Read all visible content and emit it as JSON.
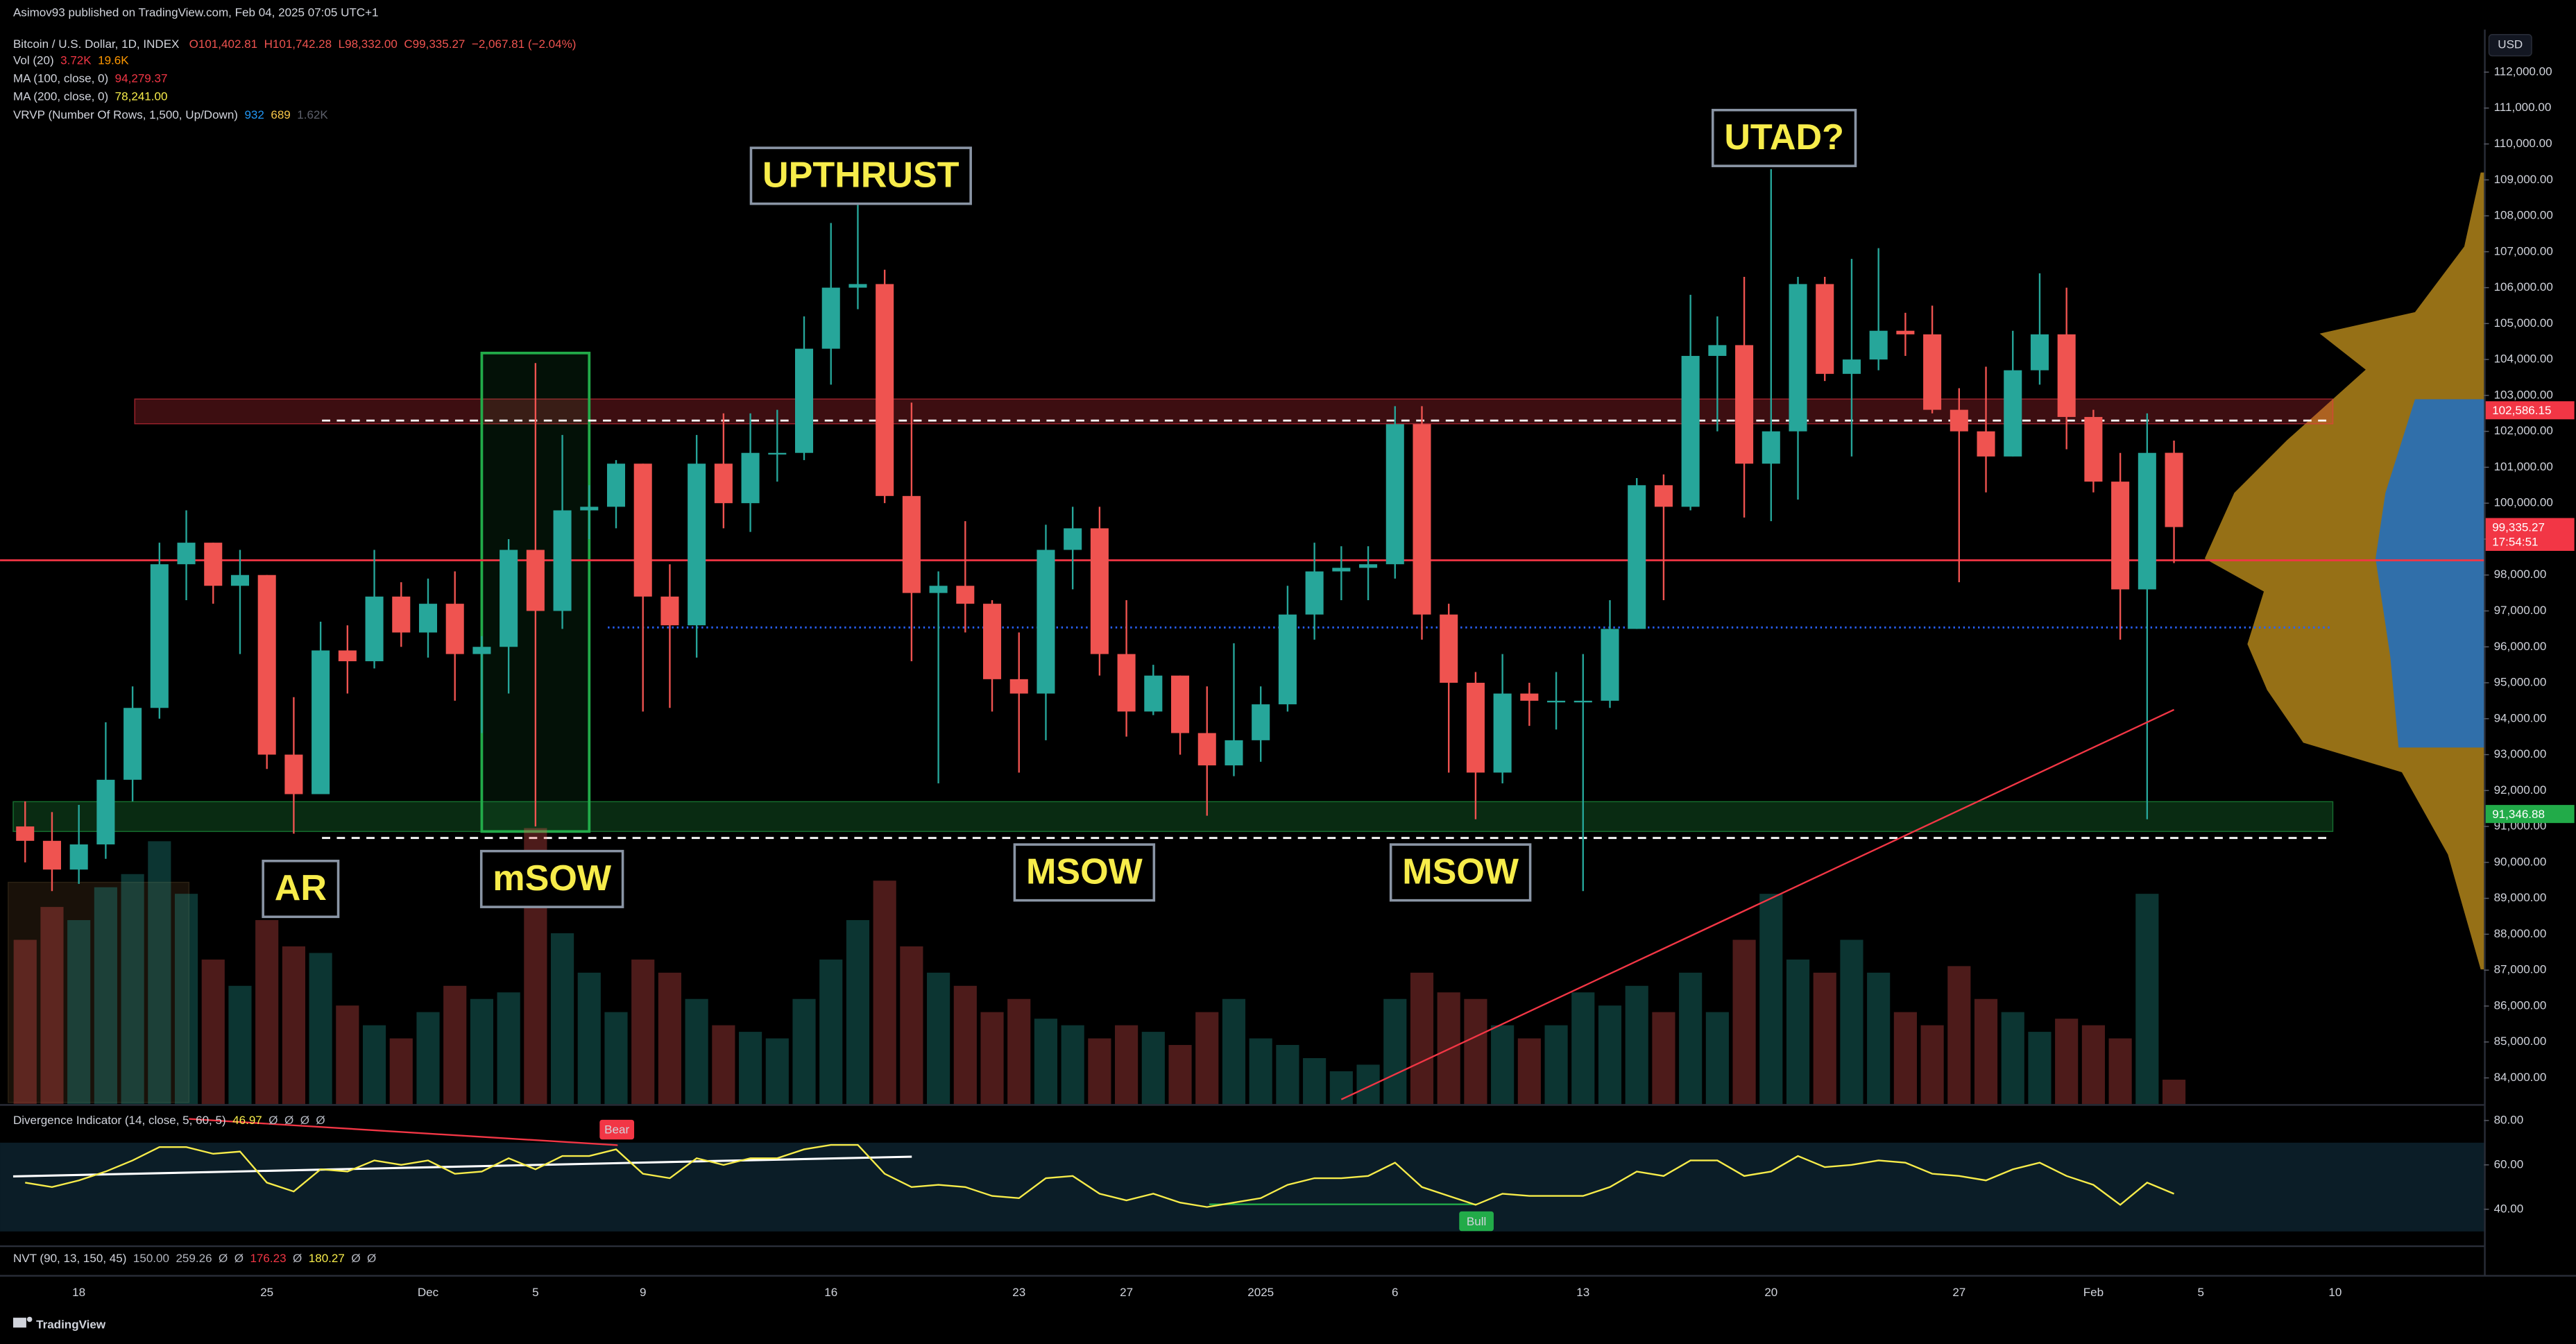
{
  "header": {
    "published": "Asimov93 published on TradingView.com, Feb 04, 2025 07:05 UTC+1",
    "symbol": "Bitcoin / U.S. Dollar, 1D, INDEX",
    "ohlc": [
      "O101,402.81",
      "H101,742.28",
      "L98,332.00",
      "C99,335.27",
      "−2,067.81 (−2.04%)"
    ],
    "studies": [
      {
        "name": "Vol (20)",
        "values": [
          "3.72K",
          "19.6K"
        ],
        "colors": [
          "#f23645",
          "#ff9800"
        ]
      },
      {
        "name": "MA (100, close, 0)",
        "values": [
          "94,279.37"
        ],
        "colors": [
          "#f23645"
        ]
      },
      {
        "name": "MA (200, close, 0)",
        "values": [
          "78,241.00"
        ],
        "colors": [
          "#f7ec4a"
        ]
      },
      {
        "name": "VRVP (Number Of Rows, 1,500, Up/Down)",
        "values": [
          "932",
          "689",
          "1.62K"
        ],
        "colors": [
          "#2196f3",
          "#f7c548",
          "#5d606b"
        ]
      }
    ]
  },
  "chart_data": {
    "type": "candlestick",
    "currency": "USD",
    "categories": [
      null,
      null,
      "18",
      null,
      null,
      null,
      null,
      null,
      null,
      "25",
      null,
      null,
      null,
      null,
      null,
      "Dec",
      null,
      null,
      null,
      "5",
      null,
      null,
      null,
      "9",
      null,
      null,
      null,
      null,
      null,
      null,
      "16",
      null,
      null,
      null,
      null,
      null,
      null,
      "23",
      null,
      null,
      null,
      "27",
      null,
      null,
      null,
      null,
      "2025",
      null,
      null,
      null,
      null,
      "6",
      null,
      null,
      null,
      null,
      null,
      null,
      "13",
      null,
      null,
      null,
      null,
      null,
      null,
      "20",
      null,
      null,
      null,
      null,
      null,
      null,
      "27",
      null,
      null,
      null,
      null,
      "Feb",
      null,
      null,
      null,
      "5",
      null,
      null,
      null,
      null,
      "10"
    ],
    "open": [
      91000,
      90600,
      89800,
      90500,
      92300,
      94300,
      98300,
      98900,
      97700,
      98000,
      93000,
      91900,
      95900,
      95600,
      97400,
      96400,
      97200,
      95800,
      96000,
      98700,
      97000,
      99800,
      99900,
      101100,
      97400,
      96600,
      101100,
      100000,
      101400,
      101400,
      104300,
      106000,
      106100,
      100200,
      97500,
      97700,
      97200,
      95100,
      94700,
      98700,
      99300,
      95800,
      94200,
      95200,
      93600,
      92700,
      93400,
      94400,
      96900,
      98100,
      98200,
      98300,
      102200,
      96900,
      95000,
      92500,
      94700,
      94500,
      94500,
      94500,
      96500,
      100500,
      99900,
      104100,
      104400,
      101100,
      102000,
      106100,
      103600,
      104000,
      104800,
      104700,
      102600,
      102000,
      101300,
      103700,
      104700,
      102400,
      100600,
      97600,
      101402.81,
      null,
      null,
      null,
      null,
      null,
      null
    ],
    "high": [
      91700,
      91400,
      91600,
      93900,
      94900,
      98900,
      99800,
      98900,
      98700,
      98000,
      94600,
      96700,
      96600,
      98700,
      97800,
      97900,
      98100,
      96300,
      99000,
      103900,
      101900,
      100500,
      101200,
      101100,
      98300,
      101900,
      102500,
      102500,
      102600,
      105200,
      107800,
      108300,
      106500,
      102800,
      98100,
      99500,
      97300,
      96400,
      99400,
      99900,
      99900,
      97300,
      95500,
      95200,
      94900,
      96100,
      94900,
      97700,
      98900,
      98800,
      98800,
      102700,
      102700,
      97200,
      95300,
      95800,
      95000,
      95300,
      95800,
      97300,
      100700,
      100800,
      105800,
      105200,
      106300,
      109300,
      106300,
      106300,
      106800,
      107100,
      105300,
      105500,
      103200,
      103800,
      104800,
      106400,
      106000,
      102600,
      101400,
      102500,
      101742.28,
      null,
      null,
      null,
      null,
      null,
      null
    ],
    "low": [
      90000,
      89200,
      89400,
      90100,
      91700,
      94000,
      97300,
      97200,
      95800,
      92600,
      90800,
      91900,
      94700,
      95400,
      96000,
      95700,
      94500,
      93600,
      94700,
      91000,
      96500,
      99000,
      99300,
      94200,
      94300,
      95700,
      99300,
      99200,
      100600,
      101200,
      103300,
      105400,
      100000,
      95600,
      92200,
      96400,
      94200,
      92500,
      93400,
      97600,
      95200,
      93500,
      94100,
      93000,
      91300,
      92400,
      92800,
      94200,
      96200,
      97300,
      97300,
      97900,
      96200,
      92500,
      91200,
      92200,
      93800,
      93700,
      89200,
      94300,
      96500,
      97300,
      99800,
      102000,
      99600,
      99500,
      100100,
      103400,
      101300,
      103700,
      104100,
      102500,
      97800,
      100300,
      101300,
      103300,
      101500,
      100300,
      96200,
      91200,
      98332,
      null,
      null,
      null,
      null,
      null,
      null
    ],
    "close": [
      90600,
      89800,
      90500,
      92300,
      94300,
      98300,
      98900,
      97700,
      98000,
      93000,
      91900,
      95900,
      95600,
      97400,
      96400,
      97200,
      95800,
      96000,
      98700,
      97000,
      99800,
      99900,
      101100,
      97400,
      96600,
      101100,
      100000,
      101400,
      101400,
      104300,
      106000,
      106100,
      100200,
      97500,
      97700,
      97200,
      95100,
      94700,
      98700,
      99300,
      95800,
      94200,
      95200,
      93600,
      92700,
      93400,
      94400,
      96900,
      98100,
      98200,
      98300,
      102200,
      96900,
      95000,
      92500,
      94700,
      94500,
      94500,
      94500,
      96500,
      100500,
      99900,
      104100,
      104400,
      101100,
      102000,
      106100,
      103600,
      104000,
      104800,
      104700,
      102600,
      102000,
      101300,
      103700,
      104700,
      102400,
      100600,
      97600,
      101400,
      99335.27,
      null,
      null,
      null,
      null,
      null,
      null
    ],
    "volume": [
      25,
      30,
      28,
      33,
      35,
      40,
      32,
      22,
      18,
      28,
      24,
      23,
      15,
      12,
      10,
      14,
      18,
      16,
      17,
      42,
      26,
      20,
      14,
      22,
      20,
      16,
      12,
      11,
      10,
      16,
      22,
      28,
      34,
      24,
      20,
      18,
      14,
      16,
      13,
      12,
      10,
      12,
      11,
      9,
      14,
      16,
      10,
      9,
      7,
      5,
      6,
      16,
      20,
      17,
      16,
      12,
      10,
      12,
      17,
      15,
      18,
      14,
      20,
      14,
      25,
      32,
      22,
      20,
      25,
      20,
      14,
      12,
      21,
      16,
      14,
      11,
      13,
      12,
      10,
      32,
      3.72,
      null,
      null,
      null,
      null,
      null,
      null
    ],
    "ma100": [
      null,
      null,
      null,
      null,
      null,
      null,
      null,
      null,
      null,
      null,
      null,
      null,
      null,
      null,
      null,
      null,
      null,
      null,
      null,
      null,
      null,
      null,
      null,
      null,
      null,
      null,
      null,
      null,
      null,
      null,
      null,
      null,
      null,
      null,
      null,
      null,
      null,
      null,
      null,
      null,
      null,
      null,
      null,
      null,
      null,
      null,
      null,
      null,
      null,
      83400,
      83750,
      84100,
      84450,
      84800,
      85150,
      85500,
      85850,
      86200,
      86550,
      86900,
      87250,
      87600,
      87950,
      88300,
      88650,
      89000,
      89350,
      89700,
      90050,
      90400,
      90750,
      91100,
      91450,
      91800,
      92150,
      92500,
      92850,
      93200,
      93550,
      93900,
      94250,
      null,
      null,
      null,
      null,
      null,
      null
    ],
    "ma_color": "#f23645",
    "up_color": "#26a69a",
    "down_color": "#ef5350",
    "ylim": [
      83270,
      112270
    ],
    "yticks": [
      {
        "value": 84000,
        "label": "84,000.00"
      },
      {
        "value": 85000,
        "label": "85,000.00"
      },
      {
        "value": 86000,
        "label": "86,000.00"
      },
      {
        "value": 87000,
        "label": "87,000.00"
      },
      {
        "value": 88000,
        "label": "88,000.00"
      },
      {
        "value": 89000,
        "label": "89,000.00"
      },
      {
        "value": 90000,
        "label": "90,000.00"
      },
      {
        "value": 91000,
        "label": "91,000.00"
      },
      {
        "value": 92000,
        "label": "92,000.00"
      },
      {
        "value": 93000,
        "label": "93,000.00"
      },
      {
        "value": 94000,
        "label": "94,000.00"
      },
      {
        "value": 95000,
        "label": "95,000.00"
      },
      {
        "value": 96000,
        "label": "96,000.00"
      },
      {
        "value": 97000,
        "label": "97,000.00"
      },
      {
        "value": 98000,
        "label": "98,000.00"
      },
      {
        "value": 99000,
        "label": "99,000.00"
      },
      {
        "value": 100000,
        "label": "100,000.00"
      },
      {
        "value": 101000,
        "label": "101,000.00"
      },
      {
        "value": 102000,
        "label": "102,000.00"
      },
      {
        "value": 103000,
        "label": "103,000.00"
      },
      {
        "value": 104000,
        "label": "104,000.00"
      },
      {
        "value": 105000,
        "label": "105,000.00"
      },
      {
        "value": 106000,
        "label": "106,000.00"
      },
      {
        "value": 107000,
        "label": "107,000.00"
      },
      {
        "value": 108000,
        "label": "108,000.00"
      },
      {
        "value": 109000,
        "label": "109,000.00"
      },
      {
        "value": 110000,
        "label": "110,000.00"
      },
      {
        "value": 111000,
        "label": "111,000.00"
      },
      {
        "value": 112000,
        "label": "112,000.00"
      }
    ],
    "price_tags": [
      {
        "value": 102586.15,
        "label": "102,586.15",
        "color": "#f23645"
      },
      {
        "value": 99335.27,
        "label": "99,335.27",
        "color": "#f23645",
        "countdown": "17:54:51"
      },
      {
        "value": 91346.88,
        "label": "91,346.88",
        "color": "#22ab49"
      }
    ],
    "zones": [
      {
        "from": 102210,
        "to": 102900,
        "color": "#f23645"
      },
      {
        "from": 90860,
        "to": 91690,
        "color": "#22ab49"
      }
    ],
    "levels": [
      {
        "value": 102300,
        "color": "#ffffff",
        "dash": "5 4"
      },
      {
        "value": 90680,
        "color": "#ffffff",
        "dash": "5 4"
      },
      {
        "value": 98410,
        "color": "#f23645",
        "dash": "none"
      },
      {
        "value": 96540,
        "color": "#2962ff",
        "dash": "1 2"
      }
    ],
    "box": {
      "start": 17,
      "end": 21,
      "from": 90860,
      "to": 104180,
      "color": "#22ab49"
    },
    "annotations": [
      "UPTHRUST",
      "UTAD?",
      "AR",
      "mSOW",
      "MSOW",
      "MSOW"
    ],
    "oscillator": {
      "legend": {
        "name": "Divergence Indicator (14, close, 5, 60, 5)",
        "values": [
          "46.97",
          "Ø",
          "Ø",
          "Ø",
          "Ø"
        ],
        "colors": [
          "#f7ec4a",
          "#b2b5be",
          "#b2b5be",
          "#b2b5be",
          "#b2b5be"
        ]
      },
      "values": [
        52,
        50,
        53,
        57,
        62,
        68,
        68,
        65,
        66,
        52,
        48,
        58,
        57,
        62,
        60,
        62,
        56,
        57,
        63,
        58,
        64,
        64,
        67,
        56,
        54,
        63,
        60,
        63,
        63,
        67,
        69,
        69,
        56,
        50,
        51,
        50,
        46,
        45,
        54,
        55,
        47,
        44,
        47,
        43,
        41,
        43,
        45,
        51,
        54,
        54,
        55,
        61,
        50,
        46,
        42,
        47,
        46,
        46,
        46,
        50,
        57,
        55,
        62,
        62,
        55,
        57,
        64,
        59,
        60,
        62,
        61,
        56,
        55,
        53,
        58,
        61,
        55,
        51,
        42,
        52,
        46.97,
        null,
        null,
        null,
        null,
        null,
        null
      ],
      "color": "#f7ec4a",
      "band": [
        30,
        70
      ],
      "ylim": [
        23.7,
        85.9
      ],
      "yticks": [
        {
          "value": 40,
          "label": "40.00"
        },
        {
          "value": 60,
          "label": "60.00"
        },
        {
          "value": 80,
          "label": "80.00"
        }
      ],
      "signals": [
        {
          "label": "Bear",
          "index": 22,
          "color": "#f23645"
        },
        {
          "label": "Bull",
          "index": 54,
          "color": "#22ab49"
        }
      ]
    },
    "nvt_legend": {
      "name": "NVT (90, 13, 150, 45)",
      "values": [
        "150.00",
        "259.26",
        "Ø",
        "Ø",
        "176.23",
        "Ø",
        "180.27",
        "Ø",
        "Ø"
      ],
      "colors": [
        "#b2b5be",
        "#b2b5be",
        "#b2b5be",
        "#b2b5be",
        "#f23645",
        "#b2b5be",
        "#f7ec4a",
        "#b2b5be",
        "#b2b5be"
      ]
    }
  },
  "footer": {
    "brand": "TradingView"
  }
}
